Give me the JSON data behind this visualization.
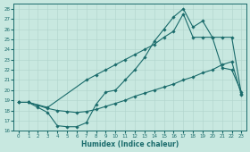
{
  "bg_color": "#c8e8e0",
  "grid_color": "#b0d4cc",
  "line_color": "#1a6b6b",
  "xlabel": "Humidex (Indice chaleur)",
  "xlim": [
    -0.5,
    23.5
  ],
  "ylim": [
    16,
    28.5
  ],
  "xticks": [
    0,
    1,
    2,
    3,
    4,
    5,
    6,
    7,
    8,
    9,
    10,
    11,
    12,
    13,
    14,
    15,
    16,
    17,
    18,
    19,
    20,
    21,
    22,
    23
  ],
  "yticks": [
    16,
    17,
    18,
    19,
    20,
    21,
    22,
    23,
    24,
    25,
    26,
    27,
    28
  ],
  "line1_x": [
    0,
    1,
    2,
    3,
    4,
    5,
    6,
    7,
    8,
    9,
    10,
    11,
    12,
    13,
    14,
    15,
    16,
    17,
    18,
    19,
    20,
    21,
    22,
    23
  ],
  "line1_y": [
    18.8,
    18.8,
    18.3,
    17.8,
    16.5,
    16.4,
    16.4,
    16.8,
    18.6,
    19.8,
    20.0,
    21.0,
    22.0,
    23.2,
    24.8,
    26.0,
    27.2,
    28.0,
    26.2,
    26.8,
    25.2,
    22.2,
    22.0,
    19.8
  ],
  "line2_x": [
    0,
    1,
    3,
    7,
    8,
    9,
    10,
    11,
    12,
    13,
    14,
    15,
    16,
    17,
    18,
    19,
    20,
    21,
    22,
    23
  ],
  "line2_y": [
    18.8,
    18.8,
    18.3,
    21.0,
    21.5,
    22.0,
    22.5,
    23.0,
    23.5,
    24.0,
    24.5,
    25.2,
    25.8,
    27.5,
    25.2,
    25.2,
    25.2,
    25.2,
    25.2,
    19.6
  ],
  "line3_x": [
    0,
    1,
    2,
    3,
    4,
    5,
    6,
    7,
    8,
    9,
    10,
    11,
    12,
    13,
    14,
    15,
    16,
    17,
    18,
    19,
    20,
    21,
    22,
    23
  ],
  "line3_y": [
    18.8,
    18.8,
    18.5,
    18.2,
    18.0,
    17.9,
    17.8,
    17.9,
    18.1,
    18.4,
    18.7,
    19.0,
    19.4,
    19.7,
    20.0,
    20.3,
    20.6,
    21.0,
    21.3,
    21.7,
    22.0,
    22.5,
    22.8,
    19.5
  ]
}
